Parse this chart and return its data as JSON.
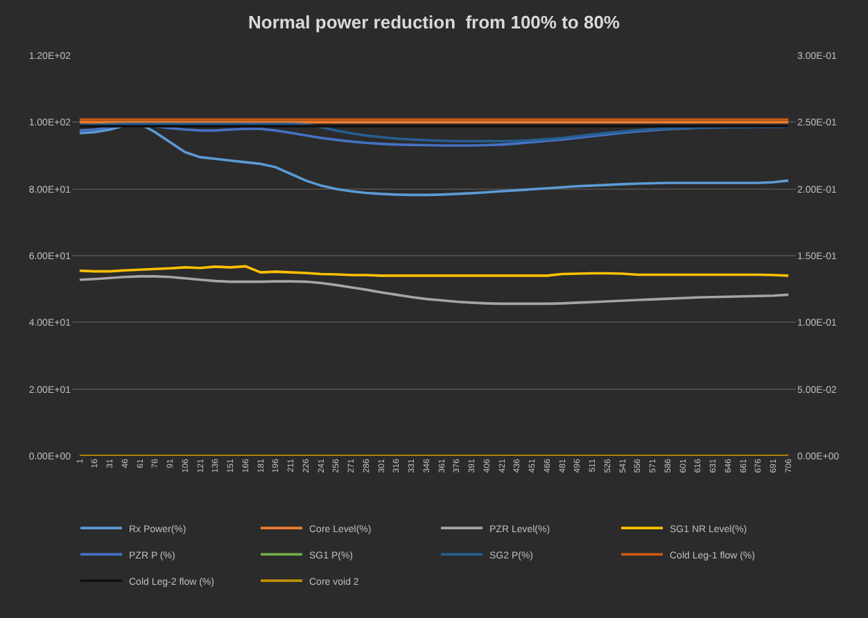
{
  "chart_data": {
    "type": "line",
    "title": "Normal power reduction  from 100% to 80%",
    "categories": [
      "1",
      "16",
      "31",
      "46",
      "61",
      "76",
      "91",
      "106",
      "121",
      "136",
      "151",
      "166",
      "181",
      "196",
      "211",
      "226",
      "241",
      "256",
      "271",
      "286",
      "301",
      "316",
      "331",
      "346",
      "361",
      "376",
      "391",
      "406",
      "421",
      "436",
      "451",
      "466",
      "481",
      "496",
      "511",
      "526",
      "541",
      "556",
      "571",
      "586",
      "601",
      "616",
      "631",
      "646",
      "661",
      "676",
      "691",
      "706"
    ],
    "ylim": [
      0,
      120
    ],
    "yticks": [
      {
        "value": 0,
        "label": "0.00E+00"
      },
      {
        "value": 20,
        "label": "2.00E+01"
      },
      {
        "value": 40,
        "label": "4.00E+01"
      },
      {
        "value": 60,
        "label": "6.00E+01"
      },
      {
        "value": 80,
        "label": "8.00E+01"
      },
      {
        "value": 100,
        "label": "1.00E+02"
      },
      {
        "value": 120,
        "label": "1.20E+02"
      }
    ],
    "y2lim": [
      0,
      0.3
    ],
    "y2ticks": [
      {
        "value": 0,
        "label": "0.00E+00"
      },
      {
        "value": 0.05,
        "label": "5.00E-02"
      },
      {
        "value": 0.1,
        "label": "1.00E-01"
      },
      {
        "value": 0.15,
        "label": "1.50E-01"
      },
      {
        "value": 0.2,
        "label": "2.00E-01"
      },
      {
        "value": 0.25,
        "label": "2.50E-01"
      },
      {
        "value": 0.3,
        "label": "3.00E-01"
      }
    ],
    "grid": "y",
    "legend": "bottom",
    "marker": "none",
    "line_style": "solid",
    "series": [
      {
        "name": "Rx Power(%)",
        "color": "#5b9bd5",
        "values": [
          96.7,
          97,
          97.8,
          99,
          99.5,
          97,
          94,
          91,
          89.5,
          89,
          88.5,
          88,
          87.5,
          86.5,
          84.5,
          82.5,
          81,
          80,
          79.3,
          78.8,
          78.5,
          78.3,
          78.2,
          78.2,
          78.3,
          78.5,
          78.7,
          79,
          79.3,
          79.6,
          79.9,
          80.2,
          80.5,
          80.8,
          81,
          81.2,
          81.4,
          81.6,
          81.7,
          81.8,
          81.8,
          81.8,
          81.8,
          81.8,
          81.8,
          81.8,
          82,
          82.5
        ]
      },
      {
        "name": "Core Level(%)",
        "color": "#ed7d31",
        "values": [
          100,
          100,
          100,
          100,
          100,
          100,
          100,
          100,
          100,
          100,
          100,
          100,
          100,
          100,
          100,
          100,
          100,
          100,
          100,
          100,
          100,
          100,
          100,
          100,
          100,
          100,
          100,
          100,
          100,
          100,
          100,
          100,
          100,
          100,
          100,
          100,
          100,
          100,
          100,
          100,
          100,
          100,
          100,
          100,
          100,
          100,
          100,
          100
        ]
      },
      {
        "name": "PZR Level(%)",
        "color": "#a5a5a5",
        "values": [
          52.8,
          53,
          53.3,
          53.6,
          53.8,
          53.8,
          53.6,
          53.2,
          52.8,
          52.4,
          52.2,
          52.2,
          52.2,
          52.3,
          52.3,
          52.2,
          51.8,
          51.2,
          50.5,
          49.8,
          49,
          48.3,
          47.6,
          47,
          46.6,
          46.2,
          45.9,
          45.7,
          45.6,
          45.6,
          45.6,
          45.6,
          45.7,
          45.9,
          46.1,
          46.3,
          46.5,
          46.7,
          46.9,
          47.1,
          47.3,
          47.5,
          47.6,
          47.7,
          47.8,
          47.9,
          48,
          48.3
        ]
      },
      {
        "name": "SG1 NR Level(%)",
        "color": "#ffc000",
        "values": [
          55.5,
          55.3,
          55.3,
          55.6,
          55.8,
          56,
          56.2,
          56.5,
          56.3,
          56.7,
          56.5,
          56.8,
          55,
          55.2,
          55,
          54.8,
          54.5,
          54.4,
          54.2,
          54.2,
          54,
          54,
          54,
          54,
          54,
          54,
          54,
          54,
          54,
          54,
          54,
          54,
          54.5,
          54.6,
          54.7,
          54.7,
          54.6,
          54.3,
          54.3,
          54.3,
          54.3,
          54.3,
          54.3,
          54.3,
          54.3,
          54.3,
          54.2,
          54
        ]
      },
      {
        "name": "PZR P (%)",
        "color": "#4472c4",
        "values": [
          97.5,
          97.8,
          98.5,
          99,
          99.3,
          98.8,
          98.2,
          97.8,
          97.5,
          97.5,
          97.8,
          98,
          98,
          97.5,
          96.8,
          96,
          95.3,
          94.7,
          94.2,
          93.8,
          93.5,
          93.3,
          93.2,
          93.1,
          93,
          93,
          93,
          93.1,
          93.3,
          93.6,
          94,
          94.4,
          94.8,
          95.3,
          95.8,
          96.3,
          96.8,
          97.2,
          97.6,
          97.9,
          98.1,
          98.3,
          98.4,
          98.5,
          98.5,
          98.6,
          98.6,
          98.7
        ]
      },
      {
        "name": "SG1 P(%)",
        "color": "#70ad47",
        "values": [
          null,
          null,
          null,
          null,
          null,
          null,
          null,
          null,
          null,
          null,
          null,
          null,
          null,
          null,
          null,
          null,
          null,
          null,
          null,
          null,
          null,
          null,
          null,
          null,
          null,
          null,
          null,
          null,
          null,
          null,
          null,
          null,
          null,
          null,
          null,
          null,
          null,
          null,
          null,
          null,
          null,
          null,
          null,
          null,
          null,
          null,
          null,
          null
        ]
      },
      {
        "name": "SG2 P(%)",
        "color": "#255e91",
        "values": [
          99,
          99.2,
          99.4,
          99.5,
          99.5,
          99.5,
          99.5,
          99.5,
          99.5,
          99.5,
          99.5,
          99.5,
          99.5,
          99.5,
          99.5,
          99.3,
          98.5,
          97.5,
          96.7,
          96,
          95.5,
          95.1,
          94.8,
          94.6,
          94.4,
          94.3,
          94.3,
          94.3,
          94.3,
          94.4,
          94.6,
          94.9,
          95.3,
          95.8,
          96.3,
          96.8,
          97.2,
          97.6,
          97.9,
          98.1,
          98.3,
          98.4,
          98.5,
          98.6,
          98.6,
          98.7,
          98.7,
          98.8
        ]
      },
      {
        "name": "Cold Leg-1 flow (%)",
        "color": "#c55a11",
        "values": [
          100.8,
          100.8,
          100.8,
          100.8,
          100.8,
          100.8,
          100.8,
          100.8,
          100.8,
          100.8,
          100.8,
          100.8,
          100.8,
          100.8,
          100.8,
          100.8,
          100.8,
          100.8,
          100.8,
          100.8,
          100.8,
          100.8,
          100.8,
          100.8,
          100.8,
          100.8,
          100.8,
          100.8,
          100.8,
          100.8,
          100.8,
          100.8,
          100.8,
          100.8,
          100.8,
          100.8,
          100.8,
          100.8,
          100.8,
          100.8,
          100.8,
          100.8,
          100.8,
          100.8,
          100.8,
          100.8,
          100.8,
          100.8
        ]
      },
      {
        "name": "Cold Leg-2 flow (%)",
        "color": "#111111",
        "values": [
          98.8,
          98.8,
          98.8,
          98.8,
          98.8,
          98.8,
          98.8,
          98.8,
          98.8,
          98.8,
          98.8,
          98.8,
          98.8,
          98.8,
          98.8,
          98.8,
          98.8,
          98.8,
          98.8,
          98.8,
          98.8,
          98.8,
          98.8,
          98.8,
          98.8,
          98.8,
          98.8,
          98.8,
          98.8,
          98.8,
          98.8,
          98.8,
          98.8,
          98.8,
          98.8,
          98.8,
          98.8,
          98.8,
          98.8,
          98.8,
          98.8,
          98.8,
          98.8,
          98.8,
          98.8,
          98.8,
          98.8,
          98.8
        ]
      },
      {
        "name": "Core void 2",
        "color": "#bf9000",
        "axis": "y2",
        "values": [
          0,
          0,
          0,
          0,
          0,
          0,
          0,
          0,
          0,
          0,
          0,
          0,
          0,
          0,
          0,
          0,
          0,
          0,
          0,
          0,
          0,
          0,
          0,
          0,
          0,
          0,
          0,
          0,
          0,
          0,
          0,
          0,
          0,
          0,
          0,
          0,
          0,
          0,
          0,
          0,
          0,
          0,
          0,
          0,
          0,
          0,
          0,
          0
        ]
      }
    ]
  }
}
